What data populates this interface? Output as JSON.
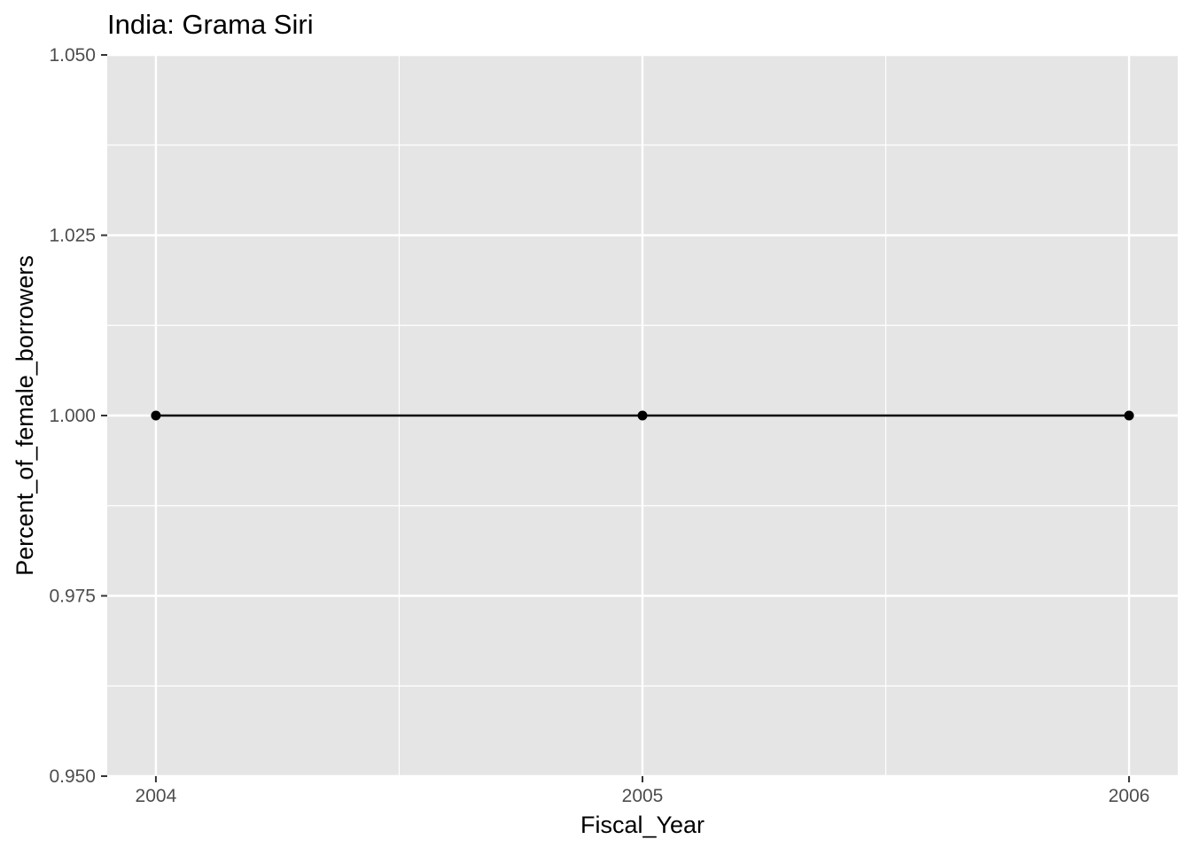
{
  "chart_data": {
    "type": "line",
    "title": "India:  Grama Siri",
    "xlabel": "Fiscal_Year",
    "ylabel": "Percent_of_female_borrowers",
    "x": [
      2004,
      2005,
      2006
    ],
    "series": [
      {
        "values": [
          1.0,
          1.0,
          1.0
        ]
      }
    ],
    "xlim": [
      2003.9,
      2006.1
    ],
    "ylim": [
      0.95,
      1.05
    ],
    "x_ticks": [
      2004,
      2005,
      2006
    ],
    "x_tick_labels": [
      "2004",
      "2005",
      "2006"
    ],
    "y_ticks": [
      0.95,
      0.975,
      1.0,
      1.025,
      1.05
    ],
    "y_tick_labels": [
      "0.950",
      "0.975",
      "1.000",
      "1.025",
      "1.050"
    ],
    "grid": true,
    "legend": "none",
    "colors": {
      "panel_background": "#e5e5e5",
      "grid_major": "#ffffff",
      "line": "#000000",
      "point": "#000000",
      "tick_text": "#4d4d4d",
      "tick_mark": "#333333"
    }
  }
}
